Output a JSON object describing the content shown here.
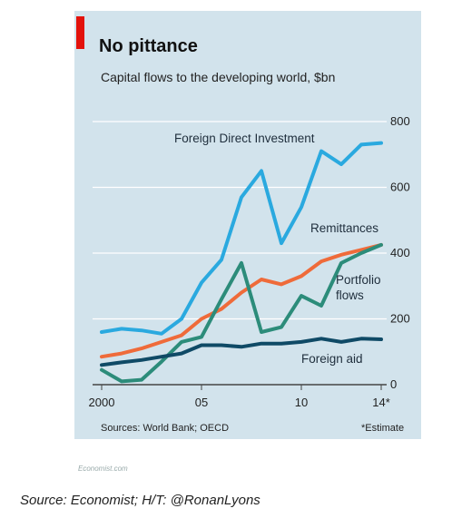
{
  "header": {
    "title": "No pittance",
    "subtitle": "Capital flows to the developing world, $bn"
  },
  "footer": {
    "source": "Sources: World Bank; OECD",
    "note": "*Estimate",
    "site": "Economist.com"
  },
  "caption": "Source: Economist; H/T: @RonanLyons",
  "colors": {
    "fdi": "#2aa9df",
    "remittances": "#ef6b3a",
    "portfolio": "#2c8c7a",
    "aid": "#0f4a66",
    "background": "#d2e3ec",
    "accent": "#e3120b"
  },
  "chart_data": {
    "type": "line",
    "x": [
      2000,
      2001,
      2002,
      2003,
      2004,
      2005,
      2006,
      2007,
      2008,
      2009,
      2010,
      2011,
      2012,
      2013,
      2014
    ],
    "x_tick_labels": [
      "2000",
      "05",
      "10",
      "14*"
    ],
    "x_tick_values": [
      2000,
      2005,
      2010,
      2014
    ],
    "ylim": [
      0,
      800
    ],
    "y_ticks": [
      0,
      200,
      400,
      600,
      800
    ],
    "y_axis_position": "right",
    "grid": true,
    "series": [
      {
        "name": "Foreign Direct Investment",
        "values": [
          160,
          170,
          165,
          155,
          200,
          310,
          380,
          570,
          650,
          430,
          540,
          710,
          670,
          730,
          735
        ]
      },
      {
        "name": "Remittances",
        "values": [
          85,
          95,
          110,
          130,
          150,
          200,
          230,
          280,
          320,
          305,
          330,
          375,
          395,
          410,
          425
        ]
      },
      {
        "name": "Portfolio flows",
        "values": [
          45,
          10,
          15,
          70,
          130,
          145,
          260,
          370,
          160,
          175,
          270,
          240,
          370,
          400,
          425
        ]
      },
      {
        "name": "Foreign aid",
        "values": [
          60,
          68,
          75,
          85,
          95,
          120,
          120,
          115,
          125,
          125,
          130,
          140,
          130,
          140,
          138
        ]
      }
    ]
  }
}
